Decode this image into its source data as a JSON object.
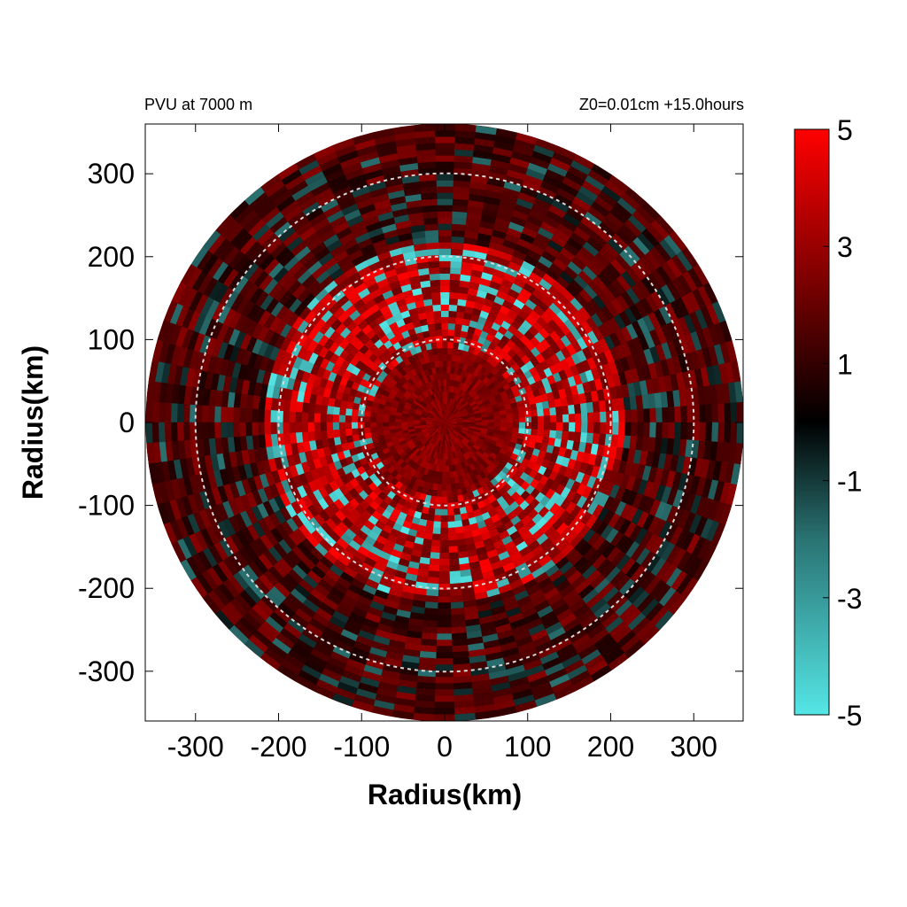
{
  "chart_data": {
    "type": "heatmap",
    "title_left": "PVU at  7000 m",
    "title_right": "Z0=0.01cm  +15.0hours",
    "xlabel": "Radius(km)",
    "ylabel": "Radius(km)",
    "xlim": [
      -360,
      360
    ],
    "ylim": [
      -360,
      360
    ],
    "x_ticks": [
      -300,
      -200,
      -100,
      0,
      100,
      200,
      300
    ],
    "y_ticks": [
      300,
      200,
      100,
      0,
      -100,
      -200,
      -300
    ],
    "x_tick_labels": [
      "-300",
      "-200",
      "-100",
      "0",
      "100",
      "200",
      "300"
    ],
    "y_tick_labels": [
      "300",
      "200",
      "100",
      "0",
      "-100",
      "-200",
      "-300"
    ],
    "domain_radius": 360,
    "reference_circles_radius": [
      100,
      200,
      300
    ],
    "colorbar": {
      "range": [
        -5,
        5
      ],
      "ticks": [
        5,
        3,
        1,
        -1,
        -3,
        -5
      ],
      "tick_labels": [
        "5",
        "3",
        "1",
        "-1",
        "-3",
        "-5"
      ],
      "colors": {
        "low": "#55e6e6",
        "mid": "#000000",
        "high": "#ff0000"
      }
    },
    "field_summary": "positive values (red) dominate; eyewall ring of strong positive PV near r=50-200 km with interspersed negative (cyan) bands"
  }
}
